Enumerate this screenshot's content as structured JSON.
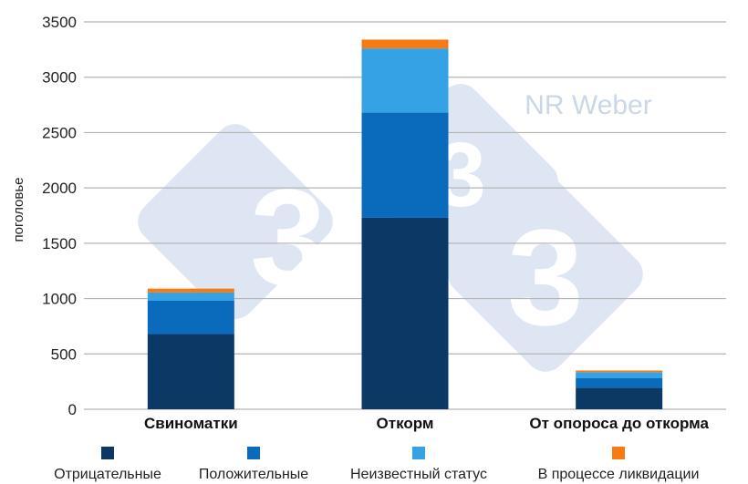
{
  "chart_data": {
    "type": "bar",
    "stacked": true,
    "title": "",
    "xlabel": "",
    "ylabel": "поголовье",
    "ylim": [
      0,
      3500
    ],
    "yticks": [
      0,
      500,
      1000,
      1500,
      2000,
      2500,
      3000,
      3500
    ],
    "grid": true,
    "legend": "bottom",
    "categories": [
      "Свиноматки",
      "Откорм",
      "От опороса до откорма"
    ],
    "series": [
      {
        "name": "Отрицательные",
        "color": "#0b3864",
        "values": [
          680,
          1730,
          195
        ]
      },
      {
        "name": "Положительные",
        "color": "#0a6bbd",
        "values": [
          300,
          950,
          85
        ]
      },
      {
        "name": "Неизвестный статус",
        "color": "#35a2e6",
        "values": [
          75,
          580,
          55
        ]
      },
      {
        "name": "В процессе ликвидации",
        "color": "#f77b12",
        "values": [
          35,
          80,
          15
        ]
      }
    ]
  },
  "watermark": {
    "text": "NR Weber",
    "digit": "3",
    "color": "#dde6f2"
  }
}
